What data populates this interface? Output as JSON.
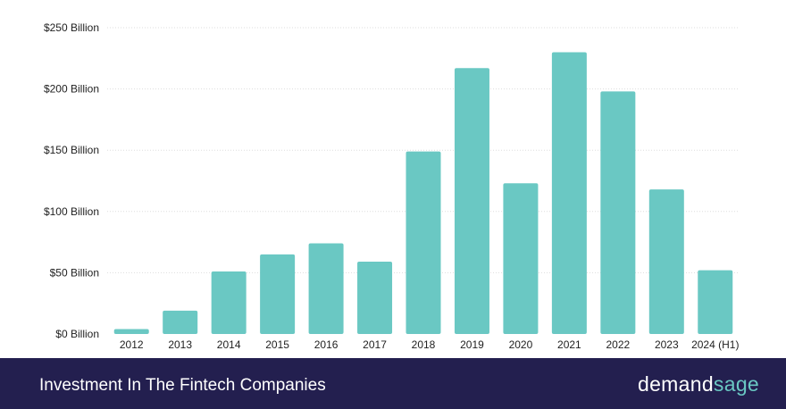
{
  "chart_data": {
    "type": "bar",
    "categories": [
      "2012",
      "2013",
      "2014",
      "2015",
      "2016",
      "2017",
      "2018",
      "2019",
      "2020",
      "2021",
      "2022",
      "2023",
      "2024 (H1)"
    ],
    "values": [
      4,
      19,
      51,
      65,
      74,
      59,
      149,
      217,
      123,
      230,
      198,
      118,
      52
    ],
    "y_ticks": [
      "$0 Billion",
      "$50 Billion",
      "$100 Billion",
      "$150 Billion",
      "$200 Billion",
      "$250 Billion"
    ],
    "ylim": [
      0,
      250
    ],
    "grid": true,
    "bar_color": "#6ac8c3"
  },
  "footer": {
    "title": "Investment In The Fintech Companies",
    "brand_part1": "demand",
    "brand_part2": "sage"
  },
  "colors": {
    "footer_bg": "#231f4f",
    "grid": "#dddddd"
  }
}
